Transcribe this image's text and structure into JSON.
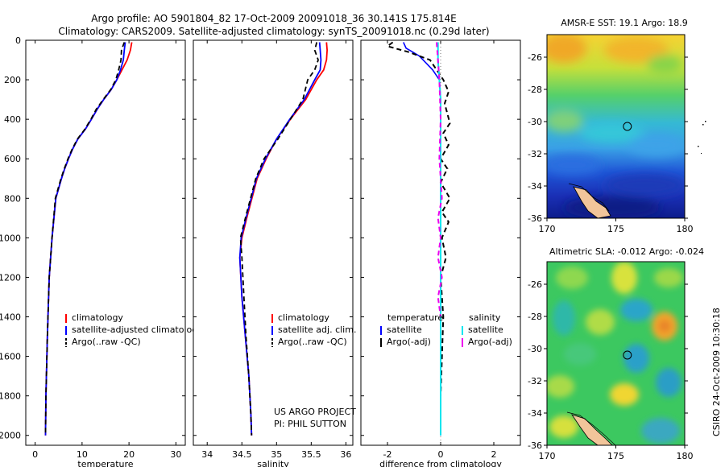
{
  "title_line1": "Argo profile: AO 5901804_82 17-Oct-2009 20091018_36 30.141S 175.814E",
  "title_line2": "Climatology: CARS2009. Satellite-adjusted climatology: synTS_20091018.nc (0.29d later)",
  "side_label": "CSIRO 24-Oct-2009 10:30:18",
  "project_line1": "US ARGO PROJECT",
  "project_line2": "PI: PHIL SUTTON",
  "colors": {
    "climatology": "#ff0000",
    "satellite": "#0000ff",
    "argo": "#000000",
    "sal_satellite": "#00e5ee",
    "sal_argo": "#ee00ee"
  },
  "chart_data": [
    {
      "type": "line",
      "xlabel": "temperature",
      "ylabel": "",
      "xlim": [
        -2,
        32
      ],
      "ylim": [
        2050,
        0
      ],
      "xticks": [
        "0",
        "10",
        "20",
        "30"
      ],
      "yticks": [
        "0",
        "200",
        "400",
        "600",
        "800",
        "1000",
        "1200",
        "1400",
        "1600",
        "1800",
        "2000"
      ],
      "legend": [
        "climatology",
        "satellite-adjusted climatology",
        "Argo(..raw -QC)"
      ],
      "series": [
        {
          "name": "climatology",
          "x": [
            20.6,
            20.3,
            19.6,
            18.5,
            17.4,
            16.2,
            14.6,
            13.2,
            12.0,
            10.7,
            9.1,
            8.0,
            7.1,
            6.3,
            5.6,
            5.0,
            4.4,
            3.6,
            3.0,
            2.6,
            2.3,
            2.2
          ],
          "y": [
            10,
            50,
            100,
            150,
            200,
            250,
            300,
            350,
            400,
            450,
            500,
            550,
            600,
            650,
            700,
            750,
            800,
            1000,
            1200,
            1500,
            1800,
            2000
          ]
        },
        {
          "name": "satellite-adjusted climatology",
          "x": [
            19.2,
            19.0,
            18.8,
            18.2,
            17.4,
            16.2,
            14.6,
            13.2,
            12.0,
            10.7,
            9.1,
            8.0,
            7.1,
            6.3,
            5.6,
            5.0,
            4.4,
            3.6,
            3.0,
            2.6,
            2.3,
            2.2
          ],
          "y": [
            10,
            50,
            100,
            150,
            200,
            250,
            300,
            350,
            400,
            450,
            500,
            550,
            600,
            650,
            700,
            750,
            800,
            1000,
            1200,
            1500,
            1800,
            2000
          ]
        },
        {
          "name": "Argo(..raw -QC)",
          "x": [
            19.0,
            18.4,
            18.3,
            17.8,
            17.2,
            16.1,
            14.5,
            13.0,
            11.9,
            10.6,
            9.0,
            7.9,
            7.0,
            6.2,
            5.5,
            4.9,
            4.3,
            3.6,
            3.0,
            2.6,
            2.3,
            2.2
          ],
          "y": [
            10,
            50,
            100,
            150,
            200,
            250,
            300,
            350,
            400,
            450,
            500,
            550,
            600,
            650,
            700,
            750,
            800,
            1000,
            1200,
            1500,
            1800,
            2000
          ]
        }
      ]
    },
    {
      "type": "line",
      "xlabel": "salinity",
      "ylabel": "",
      "xlim": [
        33.8,
        36.1
      ],
      "ylim": [
        2050,
        0
      ],
      "xticks": [
        "34",
        "34.5",
        "35",
        "35.5",
        "36"
      ],
      "legend": [
        "climatology",
        "satellite adj. clim.",
        "Argo(..raw -QC)"
      ],
      "series": [
        {
          "name": "climatology",
          "x": [
            35.72,
            35.73,
            35.72,
            35.68,
            35.58,
            35.42,
            35.2,
            35.0,
            34.85,
            34.72,
            34.57,
            34.5,
            34.47,
            34.5,
            34.55,
            34.6,
            34.63,
            34.64
          ],
          "y": [
            10,
            50,
            100,
            150,
            200,
            300,
            400,
            500,
            600,
            700,
            900,
            1000,
            1100,
            1300,
            1500,
            1700,
            1900,
            2000
          ]
        },
        {
          "name": "satellite adj. clim.",
          "x": [
            35.62,
            35.63,
            35.64,
            35.63,
            35.55,
            35.4,
            35.19,
            35.0,
            34.84,
            34.71,
            34.56,
            34.49,
            34.47,
            34.5,
            34.55,
            34.6,
            34.63,
            34.64
          ],
          "y": [
            10,
            50,
            100,
            150,
            200,
            300,
            400,
            500,
            600,
            700,
            900,
            1000,
            1100,
            1300,
            1500,
            1700,
            1900,
            2000
          ]
        },
        {
          "name": "Argo(..raw -QC)",
          "x": [
            35.58,
            35.55,
            35.6,
            35.55,
            35.45,
            35.38,
            35.2,
            35.02,
            34.82,
            34.7,
            34.55,
            34.48,
            34.5,
            34.53,
            34.56,
            34.6,
            34.63,
            34.64
          ],
          "y": [
            10,
            50,
            100,
            150,
            200,
            300,
            400,
            500,
            600,
            700,
            900,
            1000,
            1100,
            1300,
            1500,
            1700,
            1900,
            2000
          ]
        }
      ]
    },
    {
      "type": "line",
      "xlabel": "difference from climatology",
      "ylabel": "",
      "xlim": [
        -3,
        3
      ],
      "ylim": [
        2050,
        0
      ],
      "xticks": [
        "-2",
        "0",
        "2"
      ],
      "legend": [
        "temperature",
        "satellite",
        "Argo(-adj)",
        "salinity",
        "satellite",
        "Argo(-adj)"
      ],
      "series": [
        {
          "name": "temperature satellite",
          "x": [
            -1.4,
            -1.3,
            -0.8,
            -0.3,
            -0.05,
            0.0,
            0.0,
            0.0,
            0.0,
            0.0
          ],
          "y": [
            10,
            40,
            80,
            150,
            200,
            300,
            500,
            1000,
            1500,
            2000
          ]
        },
        {
          "name": "temperature Argo(-adj)",
          "x": [
            -1.8,
            -2.0,
            -1.2,
            -0.4,
            0.1,
            0.3,
            0.15,
            0.35,
            0.1,
            0.3,
            0.0,
            0.25,
            0.0,
            0.35,
            0.05,
            0.3,
            0.05,
            0.2,
            0.0,
            0.1,
            0.0
          ],
          "y": [
            10,
            30,
            60,
            100,
            200,
            260,
            320,
            420,
            470,
            530,
            600,
            650,
            720,
            800,
            870,
            920,
            1000,
            1100,
            1200,
            1400,
            1800
          ]
        },
        {
          "name": "salinity satellite",
          "x": [
            -0.1,
            -0.1,
            -0.05,
            0.0,
            0.0,
            0.0,
            0.0,
            0.0
          ],
          "y": [
            10,
            100,
            200,
            300,
            500,
            1000,
            1500,
            2000
          ]
        },
        {
          "name": "salinity Argo(-adj)",
          "x": [
            -0.15,
            -0.1,
            -0.05,
            0.0,
            -0.05,
            0.05,
            -0.1,
            0.0,
            -0.1,
            0.05,
            -0.1,
            0.0
          ],
          "y": [
            10,
            100,
            200,
            400,
            600,
            800,
            900,
            1000,
            1100,
            1200,
            1300,
            1400
          ]
        }
      ]
    },
    {
      "type": "heatmap",
      "title": "AMSR-E SST: 19.1 Argo: 18.9",
      "xlim": [
        170,
        180
      ],
      "ylim": [
        -36,
        -24.6
      ],
      "xticks": [
        "170",
        "175",
        "180"
      ],
      "yticks": [
        "-26",
        "-28",
        "-30",
        "-32",
        "-34",
        "-36"
      ],
      "marker": {
        "lon": 175.814,
        "lat": -30.141
      }
    },
    {
      "type": "heatmap",
      "title": "Altimetric SLA: -0.012 Argo: -0.024",
      "xlim": [
        170,
        180
      ],
      "ylim": [
        -36,
        -24.6
      ],
      "xticks": [
        "170",
        "175",
        "180"
      ],
      "yticks": [
        "-26",
        "-28",
        "-30",
        "-32",
        "-34",
        "-36"
      ],
      "marker": {
        "lon": 175.814,
        "lat": -30.141
      }
    }
  ]
}
